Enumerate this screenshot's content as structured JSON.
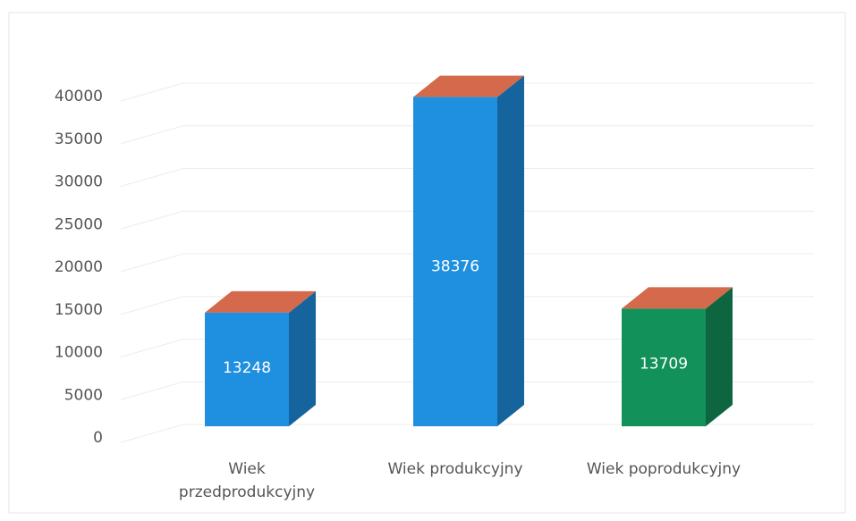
{
  "chart_data": {
    "type": "bar3d",
    "categories": [
      "Wiek przedprodukcyjny",
      "Wiek produkcyjny",
      "Wiek poprodukcyjny"
    ],
    "values": [
      13248,
      38376,
      13709
    ],
    "colors": [
      "#1f8fe0",
      "#1f8fe0",
      "#12915a"
    ],
    "top_color": "#d4694c",
    "ylim": [
      0,
      40000
    ],
    "yticks": [
      0,
      5000,
      10000,
      15000,
      20000,
      25000,
      30000,
      35000,
      40000
    ],
    "grid": true
  }
}
